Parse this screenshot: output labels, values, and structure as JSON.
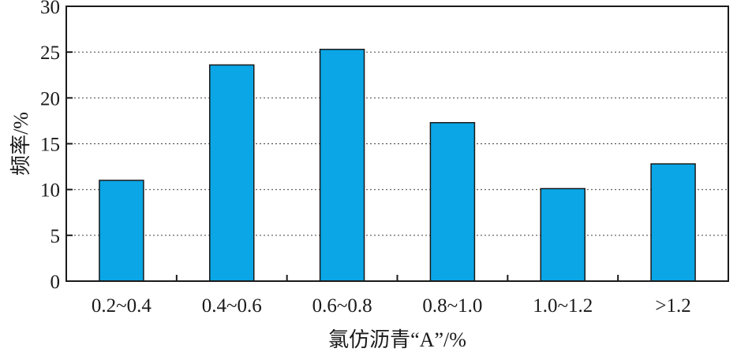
{
  "chart_data": {
    "type": "bar",
    "categories": [
      "0.2~0.4",
      "0.4~0.6",
      "0.6~0.8",
      "0.8~1.0",
      "1.0~1.2",
      ">1.2"
    ],
    "values": [
      11.0,
      23.6,
      25.3,
      17.3,
      10.1,
      12.8
    ],
    "xlabel": "氯仿沥青“A”/%",
    "ylabel": "频率/%",
    "ylim": [
      0,
      30
    ],
    "yticks": [
      "0",
      "5",
      "10",
      "15",
      "20",
      "25",
      "30"
    ],
    "grid": "horizontal dotted",
    "bar_color": "#0aa6e6"
  }
}
